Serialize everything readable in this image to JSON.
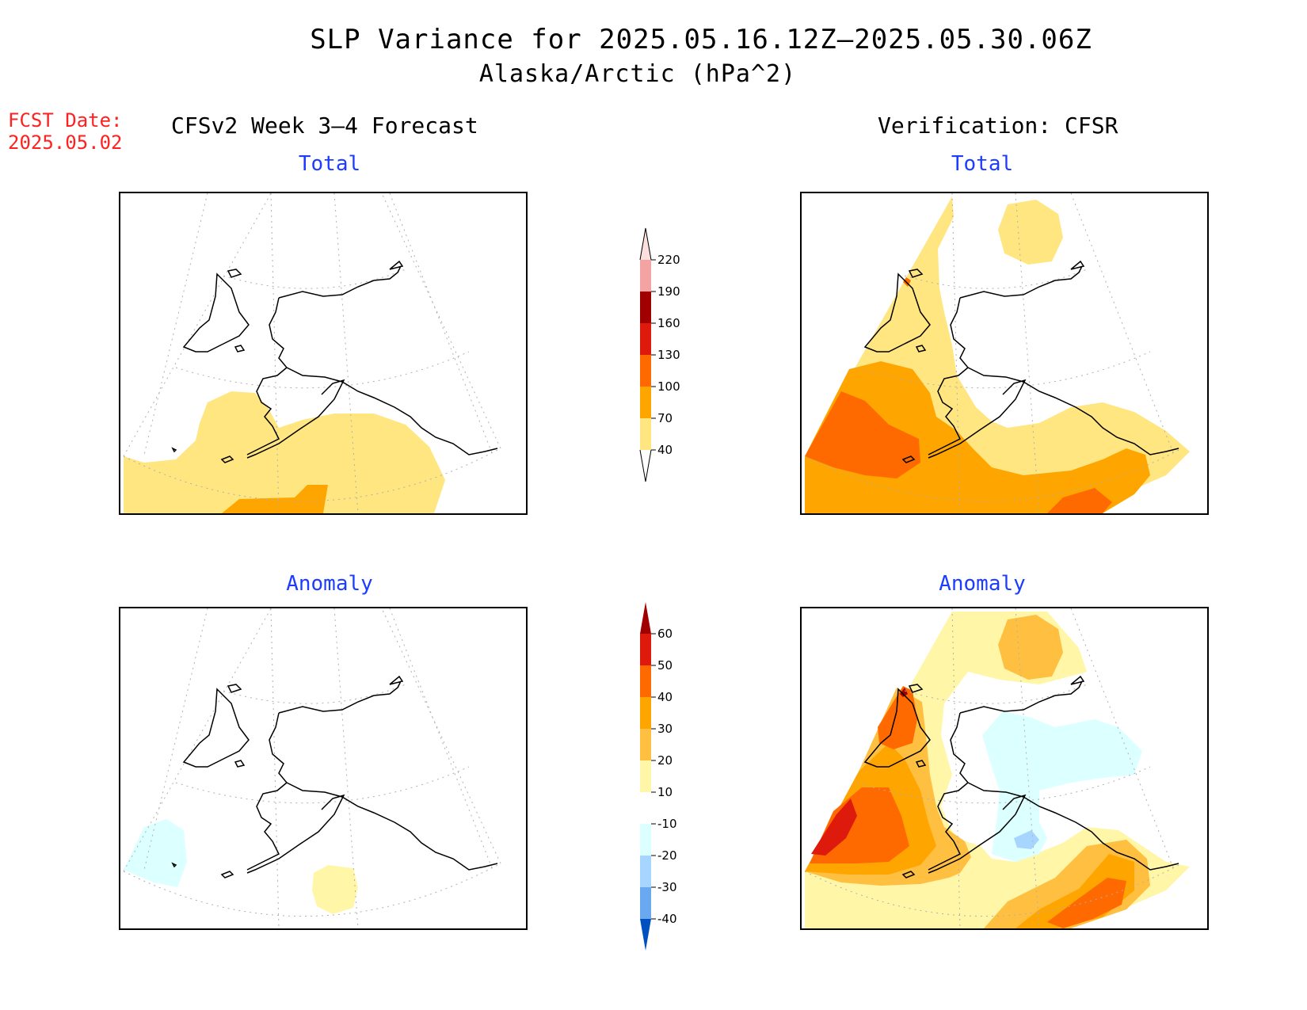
{
  "header": {
    "title_line1": "SLP Variance for 2025.05.16.12Z—2025.05.30.06Z",
    "title_line2": "Alaska/Arctic (hPa^2)",
    "fcst_label": "FCST Date:",
    "fcst_date": "2025.05.02",
    "left_heading": "CFSv2 Week 3—4 Forecast",
    "right_heading": "Verification: CFSR"
  },
  "panels": {
    "fcst_total_title": "Total",
    "verif_total_title": "Total",
    "fcst_anom_title": "Anomaly",
    "verif_anom_title": "Anomaly"
  },
  "colorbars": {
    "total": {
      "labels": [
        "220",
        "190",
        "160",
        "130",
        "100",
        "70",
        "40"
      ],
      "colors": [
        "#fde0dd",
        "#f4a3a3",
        "#a00000",
        "#dd1a0b",
        "#ff6a00",
        "#ffa500",
        "#ffe680"
      ]
    },
    "anomaly": {
      "labels": [
        "60",
        "50",
        "40",
        "30",
        "20",
        "10",
        "-10",
        "-20",
        "-30",
        "-40"
      ],
      "colors": [
        "#a00000",
        "#dd1a0b",
        "#ff6a00",
        "#ffa500",
        "#ffbf40",
        "#fff6a8",
        "#ffffff",
        "#dcffff",
        "#a6d6ff",
        "#6aa8f0",
        "#1e6fe0",
        "#0050c0"
      ]
    }
  }
}
